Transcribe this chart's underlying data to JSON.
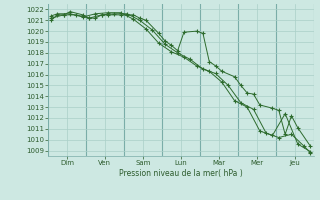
{
  "background_color": "#cde8e2",
  "grid_color": "#aacfc8",
  "line_color": "#2d6b2d",
  "marker_color": "#2d6b2d",
  "ylim": [
    1008.5,
    1022.5
  ],
  "yticks": [
    1009,
    1010,
    1011,
    1012,
    1013,
    1014,
    1015,
    1016,
    1017,
    1018,
    1019,
    1020,
    1021,
    1022
  ],
  "xlabel": "Pression niveau de la mer( hPa )",
  "day_labels": [
    "Dim",
    "Ven",
    "Sam",
    "Lun",
    "Mar",
    "Mer",
    "Jeu"
  ],
  "n_days": 7,
  "pts_per_day": 6,
  "series1_x": [
    0,
    1,
    2,
    3,
    5,
    6,
    7,
    8,
    9,
    11,
    12,
    13,
    14,
    15,
    17,
    18,
    19,
    20,
    21,
    23,
    24,
    25,
    26,
    27,
    29,
    30,
    31,
    32,
    33,
    35,
    36,
    37,
    38,
    39,
    41
  ],
  "series1_y": [
    1021.0,
    1021.5,
    1021.5,
    1021.8,
    1021.5,
    1021.2,
    1021.2,
    1021.5,
    1021.5,
    1021.5,
    1021.5,
    1021.5,
    1021.2,
    1021.0,
    1019.8,
    1019.1,
    1018.7,
    1018.2,
    1019.9,
    1020.0,
    1019.8,
    1017.2,
    1016.8,
    1016.3,
    1015.8,
    1015.0,
    1014.3,
    1014.2,
    1013.2,
    1012.9,
    1012.7,
    1010.5,
    1012.2,
    1011.1,
    1009.4
  ],
  "series2_x": [
    0,
    2,
    4,
    6,
    8,
    10,
    12,
    14,
    16,
    18,
    20,
    22,
    24,
    26,
    28,
    30,
    32,
    34,
    36,
    38,
    40,
    41
  ],
  "series2_y": [
    1021.2,
    1021.5,
    1021.5,
    1021.2,
    1021.5,
    1021.6,
    1021.6,
    1021.0,
    1020.1,
    1018.8,
    1018.0,
    1017.4,
    1016.5,
    1016.1,
    1015.0,
    1013.4,
    1012.8,
    1010.6,
    1010.2,
    1010.5,
    1009.4,
    1008.8
  ],
  "series3_x": [
    0,
    1,
    3,
    5,
    7,
    9,
    11,
    13,
    15,
    17,
    19,
    21,
    23,
    25,
    27,
    29,
    31,
    33,
    35,
    37,
    39,
    41
  ],
  "series3_y": [
    1021.4,
    1021.6,
    1021.6,
    1021.3,
    1021.6,
    1021.7,
    1021.7,
    1021.1,
    1020.2,
    1018.9,
    1018.1,
    1017.6,
    1016.8,
    1016.3,
    1015.3,
    1013.6,
    1013.0,
    1010.8,
    1010.4,
    1012.4,
    1009.6,
    1008.9
  ],
  "vline_positions": [
    0,
    6,
    12,
    18,
    24,
    30,
    36,
    42
  ],
  "xlim": [
    -0.5,
    41.5
  ]
}
